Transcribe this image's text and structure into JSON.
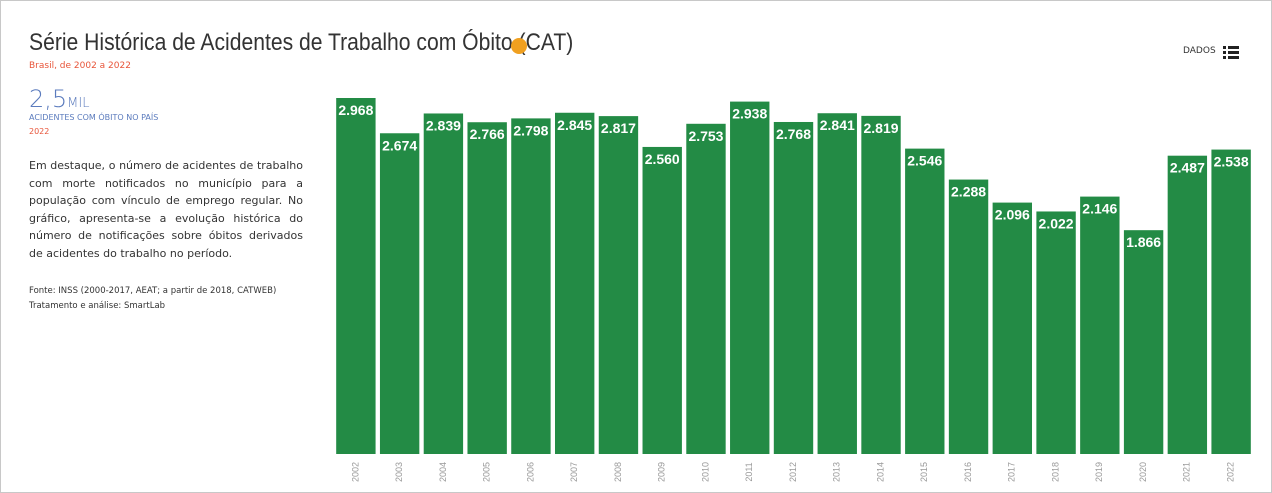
{
  "header": {
    "title": "Série Histórica de Acidentes de Trabalho com Óbito (CAT)",
    "subtitle": "Brasil, de 2002 a 2022",
    "data_button": "DADOS"
  },
  "kpi": {
    "number": "2,5",
    "unit": "MIL",
    "label": "ACIDENTES COM ÓBITO NO PAÍS",
    "year": "2022"
  },
  "description": "Em destaque, o número de acidentes de trabalho com morte notificados no município para a população com vínculo de emprego regular. No gráfico, apresenta-se a evolução histórica do número de notificações sobre óbitos derivados de acidentes do trabalho no período.",
  "source": "Fonte: INSS (2000-2017, AEAT; a partir de 2018, CATWEB)",
  "analysis": "Tratamento e análise: SmartLab",
  "chart_data": {
    "type": "bar",
    "color": "#238b45",
    "categories": [
      "2002",
      "2003",
      "2004",
      "2005",
      "2006",
      "2007",
      "2008",
      "2009",
      "2010",
      "2011",
      "2012",
      "2013",
      "2014",
      "2015",
      "2016",
      "2017",
      "2018",
      "2019",
      "2020",
      "2021",
      "2022"
    ],
    "values": [
      2968,
      2674,
      2839,
      2766,
      2798,
      2845,
      2817,
      2560,
      2753,
      2938,
      2768,
      2841,
      2819,
      2546,
      2288,
      2096,
      2022,
      2146,
      1866,
      2487,
      2538
    ],
    "value_labels": [
      "2.968",
      "2.674",
      "2.839",
      "2.766",
      "2.798",
      "2.845",
      "2.817",
      "2.560",
      "2.753",
      "2.938",
      "2.768",
      "2.841",
      "2.819",
      "2.546",
      "2.288",
      "2.096",
      "2.022",
      "2.146",
      "1.866",
      "2.487",
      "2.538"
    ]
  }
}
